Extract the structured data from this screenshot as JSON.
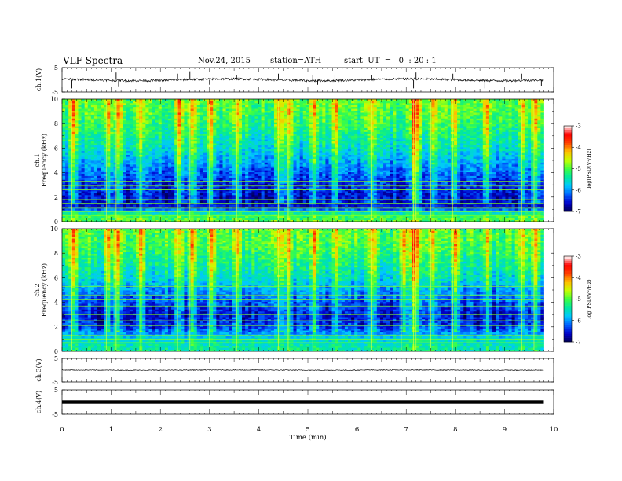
{
  "header": {
    "title": "VLF Spectra",
    "date": "Nov.24, 2015",
    "station": "station=ATH",
    "start": "start  UT  =   0  : 20 : 1"
  },
  "colors": {
    "spectrogram_ramp": [
      "#000055",
      "#0000cc",
      "#0060ff",
      "#00c8ff",
      "#00e8a0",
      "#40ff40",
      "#c8ff00",
      "#ffc000",
      "#ff4000",
      "#ff0000",
      "#ffffff"
    ]
  },
  "chart_data": [
    {
      "type": "line",
      "name": "ch1-waveform",
      "ylabel": "ch.1(V)",
      "yticks": [
        "5",
        "-5"
      ],
      "ylim": [
        -5,
        5
      ],
      "xlim": [
        0,
        10
      ],
      "end_time": 9.8,
      "baseline": 0,
      "spikes": [
        {
          "x": 0.2,
          "y": -3.5
        },
        {
          "x": 1.1,
          "y": 3.0
        },
        {
          "x": 1.15,
          "y": -3.0
        },
        {
          "x": 2.35,
          "y": 2.5
        },
        {
          "x": 2.6,
          "y": 3.5
        },
        {
          "x": 3.0,
          "y": -2.0
        },
        {
          "x": 3.55,
          "y": 2.0
        },
        {
          "x": 4.4,
          "y": 2.5
        },
        {
          "x": 5.1,
          "y": 2.0
        },
        {
          "x": 5.2,
          "y": -2.0
        },
        {
          "x": 5.55,
          "y": 2.0
        },
        {
          "x": 6.3,
          "y": 2.0
        },
        {
          "x": 7.15,
          "y": -3.5
        },
        {
          "x": 7.2,
          "y": 3.0
        },
        {
          "x": 7.95,
          "y": 2.5
        },
        {
          "x": 8.6,
          "y": -3.5
        },
        {
          "x": 9.35,
          "y": 2.5
        },
        {
          "x": 9.75,
          "y": -2.5
        }
      ]
    },
    {
      "type": "heatmap",
      "name": "ch1-spectrogram",
      "ylabel": "ch.1",
      "ylabel2": "Frequency  (kHz)",
      "xlim": [
        0,
        10
      ],
      "ylim": [
        0,
        10
      ],
      "yticks": [
        "0",
        "2",
        "4",
        "6",
        "8",
        "10"
      ],
      "end_time": 9.8,
      "profile_logpsd": [
        {
          "f": 0.0,
          "v": -5.0
        },
        {
          "f": 0.6,
          "v": -5.2
        },
        {
          "f": 1.2,
          "v": -6.6
        },
        {
          "f": 2.0,
          "v": -6.6
        },
        {
          "f": 3.0,
          "v": -6.5
        },
        {
          "f": 4.0,
          "v": -6.2
        },
        {
          "f": 5.0,
          "v": -5.9
        },
        {
          "f": 6.0,
          "v": -5.6
        },
        {
          "f": 7.0,
          "v": -5.4
        },
        {
          "f": 8.0,
          "v": -5.2
        },
        {
          "f": 9.0,
          "v": -5.05
        },
        {
          "f": 10.0,
          "v": -5.0
        }
      ],
      "tones_khz": [
        0.5,
        0.8,
        1.1,
        1.5,
        1.8,
        2.6,
        2.9,
        3.3
      ],
      "burst_times_min": [
        0.2,
        0.9,
        1.1,
        1.6,
        2.35,
        2.6,
        3.0,
        3.55,
        4.4,
        4.6,
        5.1,
        5.55,
        6.3,
        7.15,
        7.2,
        7.5,
        7.95,
        8.6,
        9.35,
        9.6
      ],
      "colorbar": {
        "label": "log(PSD(V²/Hz)",
        "ticks": [
          "-3",
          "-4",
          "-5",
          "-6",
          "-7"
        ],
        "range": [
          -7,
          -3
        ]
      }
    },
    {
      "type": "heatmap",
      "name": "ch2-spectrogram",
      "ylabel": "ch.2",
      "ylabel2": "Frequency  (kHz)",
      "xlim": [
        0,
        10
      ],
      "ylim": [
        0,
        10
      ],
      "yticks": [
        "0",
        "2",
        "4",
        "6",
        "8",
        "10"
      ],
      "end_time": 9.8,
      "profile_logpsd": [
        {
          "f": 0.0,
          "v": -5.4
        },
        {
          "f": 1.0,
          "v": -5.6
        },
        {
          "f": 1.5,
          "v": -6.0
        },
        {
          "f": 2.0,
          "v": -6.4
        },
        {
          "f": 3.0,
          "v": -6.6
        },
        {
          "f": 4.0,
          "v": -6.3
        },
        {
          "f": 5.0,
          "v": -6.0
        },
        {
          "f": 6.0,
          "v": -5.6
        },
        {
          "f": 7.0,
          "v": -5.4
        },
        {
          "f": 8.0,
          "v": -5.2
        },
        {
          "f": 9.0,
          "v": -5.05
        },
        {
          "f": 10.0,
          "v": -5.0
        }
      ],
      "tones_khz": [
        0.7,
        1.0,
        1.3,
        2.1,
        2.5,
        3.0,
        3.7,
        4.2,
        4.6,
        5.3
      ],
      "burst_times_min": [
        0.2,
        0.9,
        1.1,
        1.6,
        2.35,
        2.6,
        3.0,
        3.55,
        4.4,
        4.6,
        5.1,
        5.55,
        6.3,
        6.9,
        7.15,
        7.2,
        7.5,
        7.95,
        8.6,
        9.35,
        9.6
      ],
      "colorbar": {
        "label": "log(PSD(V²/Hz)",
        "ticks": [
          "-3",
          "-4",
          "-5",
          "-6",
          "-7"
        ],
        "range": [
          -7,
          -3
        ]
      }
    },
    {
      "type": "line",
      "name": "ch3-waveform",
      "ylabel": "ch.3(V)",
      "yticks": [
        "5",
        "-5"
      ],
      "ylim": [
        -5,
        5
      ],
      "xlim": [
        0,
        10
      ],
      "end_time": 9.8,
      "baseline": 0,
      "spikes": []
    },
    {
      "type": "line",
      "name": "ch4-waveform",
      "ylabel": "ch.4(V)",
      "yticks": [
        "5",
        "-5"
      ],
      "ylim": [
        -5,
        5
      ],
      "xlim": [
        0,
        10
      ],
      "end_time": 9.8,
      "baseline": 0,
      "thick": true,
      "spikes": []
    }
  ],
  "xaxis": {
    "label": "Time  (min)",
    "ticks": [
      "0",
      "1",
      "2",
      "3",
      "4",
      "5",
      "6",
      "7",
      "8",
      "9",
      "10"
    ],
    "range": [
      0,
      10
    ]
  }
}
